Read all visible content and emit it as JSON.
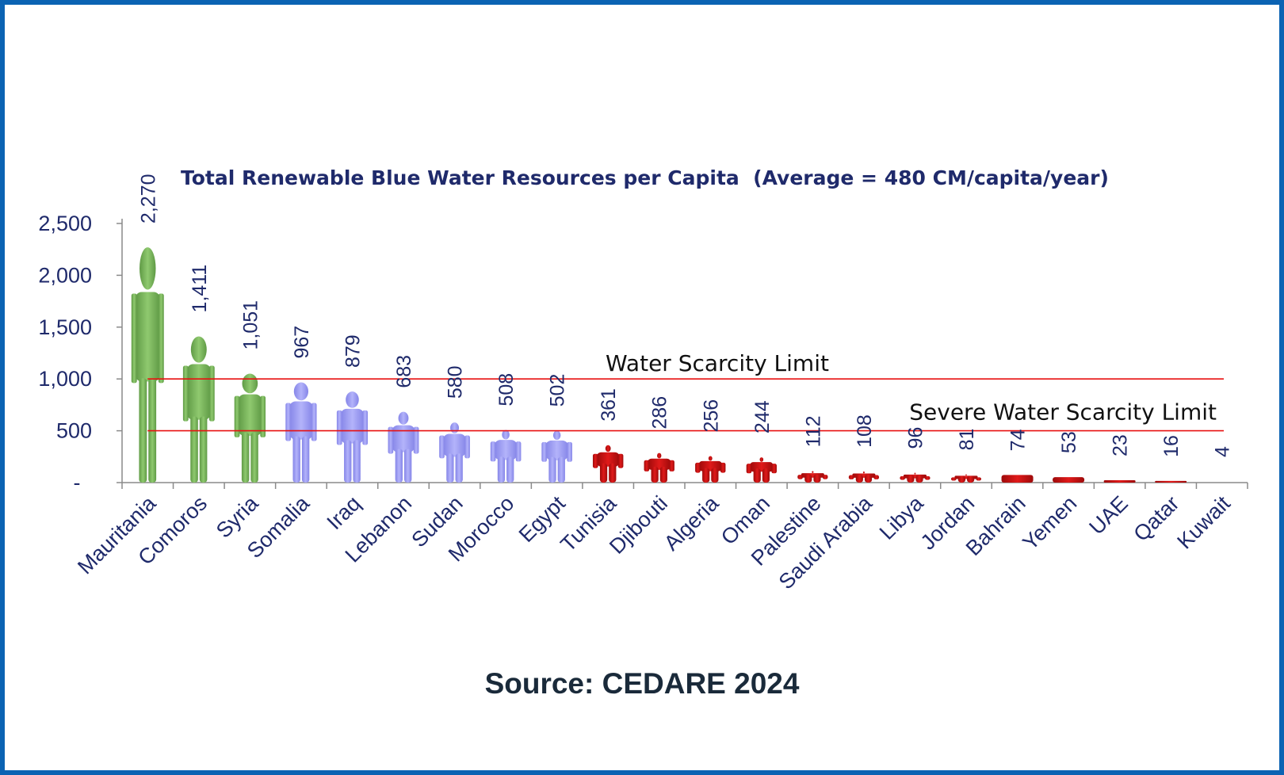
{
  "chart_data": {
    "type": "bar",
    "title": "Total Renewable Blue Water Resources per Capita  (Average = 480 CM/capita/year)",
    "categories": [
      "Mauritania",
      "Comoros",
      "Syria",
      "Somalia",
      "Iraq",
      "Lebanon",
      "Sudan",
      "Morocco",
      "Egypt",
      "Tunisia",
      "Djibouti",
      "Algeria",
      "Oman",
      "Palestine",
      "Saudi Arabia",
      "Libya",
      "Jordan",
      "Bahrain",
      "Yemen",
      "UAE",
      "Qatar",
      "Kuwait"
    ],
    "values": [
      2270,
      1411,
      1051,
      967,
      879,
      683,
      580,
      508,
      502,
      361,
      286,
      256,
      244,
      112,
      108,
      96,
      81,
      74,
      53,
      23,
      16,
      4
    ],
    "value_labels": [
      "2,270",
      "1,411",
      "1,051",
      "967",
      "879",
      "683",
      "580",
      "508",
      "502",
      "361",
      "286",
      "256",
      "244",
      "112",
      "108",
      "96",
      "81",
      "74",
      "53",
      "23",
      "16",
      "4"
    ],
    "ylim": [
      0,
      2500
    ],
    "yticks": [
      0,
      500,
      1000,
      1500,
      2000,
      2500
    ],
    "ytick_labels": [
      "-",
      "500",
      "1,000",
      "1,500",
      "2,000",
      "2,500"
    ],
    "xlabel": "",
    "ylabel": "",
    "grid": false,
    "mark_shape": "person-icon",
    "reference_lines": [
      {
        "label": "Water Scarcity Limit",
        "value": 1000,
        "color": "#e81010"
      },
      {
        "label": "Severe Water Scarcity Limit",
        "value": 500,
        "color": "#e81010"
      }
    ],
    "color_groups": [
      {
        "name": "above-1000",
        "color": "#7db75f",
        "categories": [
          "Mauritania",
          "Comoros",
          "Syria"
        ]
      },
      {
        "name": "500-1000",
        "color": "#9d9df2",
        "categories": [
          "Somalia",
          "Iraq",
          "Lebanon",
          "Sudan",
          "Morocco",
          "Egypt"
        ]
      },
      {
        "name": "below-500",
        "color": "#c80f0f",
        "categories": [
          "Tunisia",
          "Djibouti",
          "Algeria",
          "Oman",
          "Palestine",
          "Saudi Arabia",
          "Libya",
          "Jordan",
          "Bahrain",
          "Yemen",
          "UAE",
          "Qatar",
          "Kuwait"
        ]
      }
    ]
  },
  "source": "Source: CEDARE 2024"
}
